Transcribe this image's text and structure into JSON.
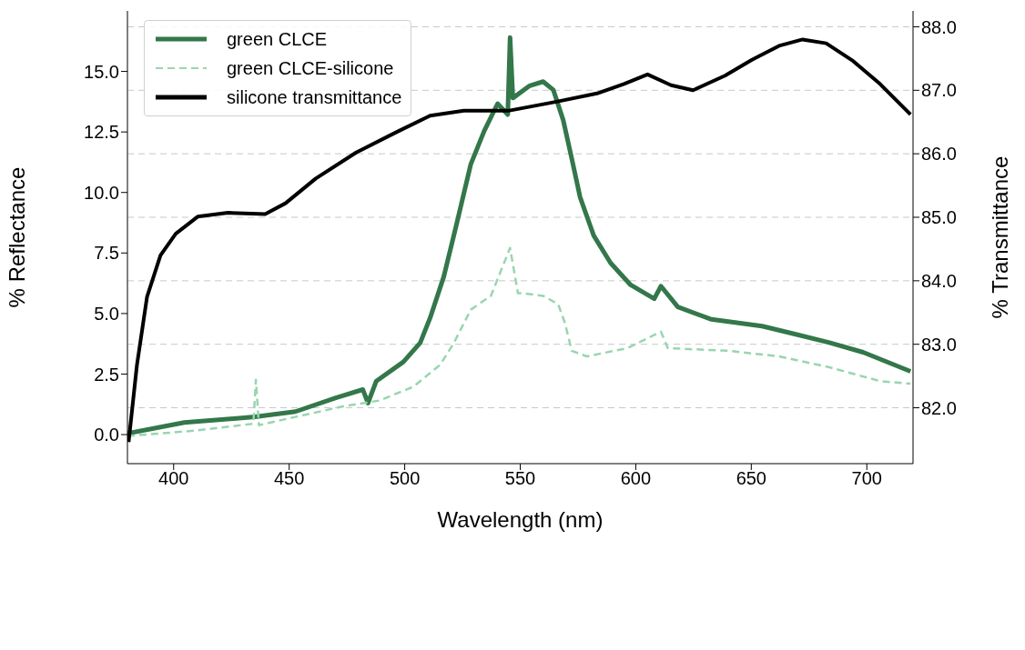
{
  "chart_data": {
    "type": "line",
    "xlabel": "Wavelength (nm)",
    "ylabel": "% Reflectance",
    "y2label": "% Transmittance",
    "xlim": [
      380,
      720
    ],
    "xticks": [
      400,
      450,
      500,
      550,
      600,
      650,
      700
    ],
    "ylim": [
      -1.2,
      17.5
    ],
    "yticks": [
      {
        "value": 0,
        "label": "0.0"
      },
      {
        "value": 2.5,
        "label": "2.5"
      },
      {
        "value": 5,
        "label": "5.0"
      },
      {
        "value": 7.5,
        "label": "7.5"
      },
      {
        "value": 10,
        "label": "10.0"
      },
      {
        "value": 12.5,
        "label": "12.5"
      },
      {
        "value": 15,
        "label": "15.0"
      }
    ],
    "y2lim": [
      81.12,
      88.25
    ],
    "y2ticks": [
      {
        "value": 82,
        "label": "82.0"
      },
      {
        "value": 83,
        "label": "83.0"
      },
      {
        "value": 84,
        "label": "84.0"
      },
      {
        "value": 85,
        "label": "85.0"
      },
      {
        "value": 86,
        "label": "86.0"
      },
      {
        "value": 87,
        "label": "87.0"
      },
      {
        "value": 88,
        "label": "88.0"
      }
    ],
    "grid": "y2",
    "legend": "top left",
    "marker": "none",
    "series": [
      {
        "name": "green CLCE",
        "color": "#33774a",
        "line_style": "solid",
        "x": [
          380,
          404.6,
          435.2,
          452.7,
          470.2,
          481.9,
          484.1,
          487.7,
          499.4,
          506.7,
          511,
          516.9,
          522.7,
          528.6,
          534.4,
          540.2,
          544.6,
          545.6,
          546.8,
          554.1,
          559.9,
          564.3,
          568.6,
          572.3,
          575.9,
          581.8,
          589.1,
          597.8,
          608,
          610.9,
          618.2,
          632.8,
          654.7,
          669.3,
          683.8,
          698.4,
          718.9
        ],
        "values": [
          0.05,
          0.5,
          0.73,
          0.95,
          1.52,
          1.86,
          1.3,
          2.21,
          3.0,
          3.79,
          4.82,
          6.52,
          8.79,
          11.17,
          12.54,
          13.67,
          13.22,
          16.4,
          13.9,
          14.41,
          14.58,
          14.24,
          12.99,
          11.4,
          9.81,
          8.22,
          7.09,
          6.18,
          5.61,
          6.13,
          5.27,
          4.76,
          4.48,
          4.14,
          3.8,
          3.4,
          2.61
        ]
      },
      {
        "name": "green CLCE-silicone",
        "color": "#99d5b0",
        "line_style": "dashed",
        "x": [
          380,
          408.9,
          434.5,
          435.6,
          436.9,
          452.7,
          474.6,
          489.2,
          503.8,
          515.4,
          521.3,
          528.6,
          537.3,
          545.6,
          549,
          551.1,
          559.9,
          566.4,
          569.4,
          572.3,
          578.8,
          596.4,
          610.9,
          613.9,
          640.1,
          662,
          683.8,
          705.7,
          718.9
        ],
        "values": [
          -0.06,
          0.16,
          0.45,
          2.26,
          0.39,
          0.73,
          1.19,
          1.41,
          1.98,
          2.89,
          3.79,
          5.16,
          5.73,
          7.71,
          5.84,
          5.84,
          5.73,
          5.39,
          4.59,
          3.46,
          3.23,
          3.57,
          4.25,
          3.57,
          3.46,
          3.23,
          2.78,
          2.21,
          2.1
        ]
      },
      {
        "name": "silicone transmittance",
        "color": "#000000",
        "line_style": "solid",
        "axis": "y2",
        "x": [
          380.5,
          384.1,
          388.5,
          394.3,
          400.9,
          410.4,
          423.5,
          439.6,
          448.4,
          461.5,
          479,
          496.4,
          511,
          525.6,
          545.3,
          565.7,
          583.2,
          594.9,
          605.1,
          615.3,
          624.8,
          638.6,
          650.3,
          662,
          672.2,
          682.4,
          694.1,
          705.7,
          718.9
        ],
        "values": [
          81.46,
          82.67,
          83.75,
          84.4,
          84.74,
          85.01,
          85.07,
          85.05,
          85.22,
          85.61,
          86.02,
          86.34,
          86.6,
          86.68,
          86.68,
          86.82,
          86.95,
          87.1,
          87.25,
          87.08,
          87.0,
          87.23,
          87.48,
          87.7,
          87.8,
          87.74,
          87.46,
          87.1,
          86.62
        ]
      }
    ]
  }
}
